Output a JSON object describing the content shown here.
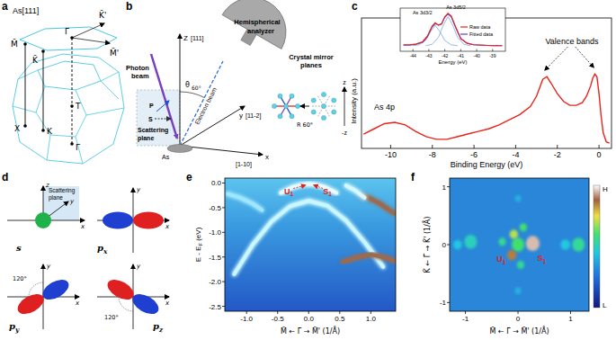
{
  "figure": {
    "a": {
      "label": "a",
      "title": "As[111]",
      "labels": {
        "M_bar": "M̄",
        "K_bar": "K̄",
        "Gamma_bar": "Γ̄",
        "K_bar_prime": "K̄'",
        "M_bar_prime": "M̄'",
        "X": "X",
        "K": "K",
        "T": "T",
        "Gamma": "Γ"
      }
    },
    "b": {
      "label": "b",
      "z_axis": "Z",
      "z_dir": "[111]",
      "theta": "θ",
      "angle": "60°",
      "analyzer": [
        "Hemispherical",
        "analyzer"
      ],
      "photon": [
        "Photon",
        "beam"
      ],
      "scattering": [
        "Scattering",
        "plane"
      ],
      "p_pol": "P",
      "s_pol": "S",
      "y_axis": "y",
      "y_dir": "[11-2]",
      "electron": "Electron beam",
      "x_axis": "x",
      "x_dir": "[1-10]",
      "atom": "As",
      "mirror": [
        "Crystal mirror",
        "planes"
      ],
      "rotation": "R 60°",
      "z_pos": "z",
      "z_neg": "-z"
    },
    "d": {
      "label": "d",
      "plane": [
        "Scattering",
        "plane"
      ],
      "axes": {
        "z": "z",
        "y": "y",
        "x": "x"
      },
      "orbitals": [
        {
          "base": "s"
        },
        {
          "base": "p",
          "sub": "x"
        },
        {
          "base": "p",
          "sub": "y",
          "angle": "120°"
        },
        {
          "base": "p",
          "sub": "z",
          "angle": "120°"
        }
      ]
    }
  },
  "chart_data": [
    {
      "type": "line",
      "label": "c",
      "xlabel": "Binding Energy (eV)",
      "ylabel": "Intensity (a.u.)",
      "xlim": [
        -11.4,
        0.6
      ],
      "xticks": [
        -10,
        -8,
        -6,
        -4,
        -2,
        0
      ],
      "ylim": [
        0,
        1
      ],
      "tick_labels": "x",
      "series": [
        {
          "color": "#e8231a",
          "x": [
            -11.3,
            -10.8,
            -10.3,
            -9.8,
            -9.3,
            -8.8,
            -8.3,
            -7.8,
            -7.3,
            -6.8,
            -6.3,
            -5.8,
            -5.3,
            -4.8,
            -4.3,
            -3.8,
            -3.3,
            -3.0,
            -2.7,
            -2.5,
            -2.3,
            -2.0,
            -1.7,
            -1.4,
            -1.1,
            -0.8,
            -0.6,
            -0.4,
            -0.3,
            -0.2,
            -0.1,
            0.0,
            0.1,
            0.2,
            0.35,
            0.5
          ],
          "values": [
            0.11,
            0.15,
            0.19,
            0.2,
            0.18,
            0.13,
            0.09,
            0.07,
            0.07,
            0.09,
            0.11,
            0.13,
            0.15,
            0.18,
            0.22,
            0.26,
            0.32,
            0.4,
            0.53,
            0.55,
            0.5,
            0.42,
            0.36,
            0.33,
            0.33,
            0.35,
            0.4,
            0.48,
            0.54,
            0.57,
            0.55,
            0.42,
            0.25,
            0.12,
            0.05,
            0.04
          ]
        }
      ],
      "annotations": [
        {
          "text": "As 4p",
          "x": -10.3,
          "y": 0.3
        },
        {
          "text": "Valence bands",
          "x": -1.3,
          "y": 0.8,
          "points_to": [
            {
              "x": -2.6,
              "y": 0.6
            },
            {
              "x": -0.25,
              "y": 0.62
            }
          ]
        }
      ],
      "inset": {
        "type": "line",
        "xlabel": "Energy (eV)",
        "xlim": [
          -44.8,
          -38.2
        ],
        "xticks": [
          -44,
          -43,
          -42,
          -41,
          -40,
          -39
        ],
        "ylim": [
          0,
          1
        ],
        "legend": "upper right",
        "series": [
          {
            "name": "Raw data",
            "color": "#e8231a",
            "x": [
              -44.6,
              -44.2,
              -43.8,
              -43.4,
              -43.1,
              -42.8,
              -42.6,
              -42.4,
              -42.2,
              -42.0,
              -41.8,
              -41.6,
              -41.3,
              -41.0,
              -40.6,
              -40.2,
              -39.6,
              -39.0,
              -38.4
            ],
            "values": [
              0.15,
              0.15,
              0.17,
              0.22,
              0.35,
              0.58,
              0.66,
              0.6,
              0.63,
              0.8,
              0.88,
              0.82,
              0.55,
              0.3,
              0.19,
              0.15,
              0.14,
              0.13,
              0.13
            ]
          },
          {
            "name": "Fitted data",
            "color": "#5a3fd0",
            "x": [
              -44.6,
              -44.2,
              -43.8,
              -43.4,
              -43.1,
              -42.8,
              -42.6,
              -42.4,
              -42.2,
              -42.0,
              -41.8,
              -41.6,
              -41.3,
              -41.0,
              -40.6,
              -40.2,
              -39.6,
              -39.0,
              -38.4
            ],
            "values": [
              0.14,
              0.14,
              0.16,
              0.21,
              0.33,
              0.56,
              0.64,
              0.61,
              0.64,
              0.79,
              0.86,
              0.8,
              0.53,
              0.29,
              0.18,
              0.15,
              0.14,
              0.13,
              0.13
            ]
          },
          {
            "color": "#7fa7d8",
            "x": [
              -44.0,
              -43.6,
              -43.2,
              -42.9,
              -42.6,
              -42.3,
              -42.0,
              -41.6,
              -41.2
            ],
            "values": [
              0.13,
              0.15,
              0.25,
              0.45,
              0.6,
              0.45,
              0.25,
              0.15,
              0.13
            ]
          },
          {
            "color": "#7fa7d8",
            "x": [
              -43.2,
              -42.8,
              -42.4,
              -42.1,
              -41.8,
              -41.5,
              -41.2,
              -40.8,
              -40.4
            ],
            "values": [
              0.13,
              0.16,
              0.32,
              0.6,
              0.8,
              0.6,
              0.32,
              0.16,
              0.13
            ]
          }
        ],
        "annotations": [
          {
            "text": "As 3d3/2",
            "x": -43.4,
            "y": 0.85
          },
          {
            "text": "As 3d5/2",
            "x": -41.3,
            "y": 0.97
          }
        ]
      }
    },
    {
      "type": "line",
      "label": "e",
      "ylabel": {
        "text": "E - E",
        "sub": "F",
        "after": " (eV)"
      },
      "xlabel": "M̄ ← Γ̄ → M̄' (1/Å)",
      "xlim": [
        -1.35,
        1.4
      ],
      "ylim": [
        -2.6,
        0.1
      ],
      "xticks": [
        {
          "value": -1,
          "label": "-1.0"
        },
        -0.5,
        {
          "value": 0,
          "label": "0.0"
        },
        0.5,
        {
          "value": 1,
          "label": "1.0"
        }
      ],
      "yticks": [
        {
          "value": 0,
          "label": "0.0"
        },
        -0.5,
        {
          "value": -1,
          "label": "-1.0"
        },
        -1.5,
        {
          "value": -2,
          "label": "-2.0"
        },
        -2.5
      ],
      "series": [
        {
          "color": "#c9f6ff",
          "x": [
            -1.2,
            -0.9,
            -0.6,
            -0.3,
            0,
            0.3,
            0.6,
            0.9,
            1.2
          ],
          "values": [
            -1.85,
            -1.25,
            -0.78,
            -0.47,
            -0.36,
            -0.46,
            -0.76,
            -1.2,
            -1.7
          ]
        },
        {
          "color": "#e8fbff",
          "x": [
            -0.45,
            -0.25,
            -0.1,
            0,
            0.1,
            0.25,
            0.45
          ],
          "values": [
            -0.2,
            -0.08,
            -0.03,
            -0.02,
            -0.03,
            -0.08,
            -0.2
          ]
        },
        {
          "color": "#9fe6ff",
          "x": [
            -1.3,
            -1.1,
            -0.9,
            -0.75
          ],
          "values": [
            -0.22,
            -0.3,
            -0.42,
            -0.55
          ]
        },
        {
          "color": "#9b6b4f",
          "x": [
            0.85,
            1.0,
            1.15,
            1.3,
            1.38
          ],
          "values": [
            -0.25,
            -0.32,
            -0.42,
            -0.55,
            -0.62
          ]
        },
        {
          "color": "#9b6b4f",
          "x": [
            0.55,
            0.8,
            1.0,
            1.2,
            1.38
          ],
          "values": [
            -1.6,
            -1.5,
            -1.45,
            -1.5,
            -1.58
          ]
        },
        {
          "color": "#d8f8ff",
          "x": [
            0.6,
            0.75,
            0.9
          ],
          "values": [
            -0.05,
            -0.15,
            -0.3
          ]
        }
      ],
      "annotations": [
        {
          "text": "U",
          "sub": "1",
          "x": -0.32,
          "y": -0.22,
          "points_to": {
            "x": -0.05,
            "y": -0.04
          }
        },
        {
          "text": "S",
          "sub": "1",
          "x": 0.3,
          "y": -0.22,
          "points_to": {
            "x": 0.08,
            "y": -0.04
          }
        }
      ]
    },
    {
      "type": "scatter",
      "label": "f",
      "xlabel": "M̄ ← Γ̄ → M̄' (1/Å)",
      "ylabel": "K̄ ← Γ̄ → K̄' (1/Å)",
      "xlim": [
        -1.3,
        1.35
      ],
      "ylim": [
        -1.15,
        1.15
      ],
      "xticks": [
        -1,
        0,
        1
      ],
      "yticks": [
        -1,
        0,
        1
      ],
      "series": [
        {
          "x": [
            0,
            0.28,
            -0.12,
            -0.08,
            0.1,
            -0.3,
            0.05,
            -0.9,
            -1.15,
            0.9,
            1.15,
            0,
            0
          ],
          "values": [
            0,
            0.02,
            -0.18,
            0.18,
            0.3,
            0.05,
            -0.35,
            0.05,
            0,
            0,
            0,
            0.8,
            -0.8
          ],
          "size": [
            0.12,
            0.13,
            0.09,
            0.08,
            0.07,
            0.07,
            0.07,
            0.12,
            0.08,
            0.09,
            0.12,
            0.06,
            0.06
          ],
          "intensity": [
            0.6,
            0.95,
            0.85,
            0.7,
            0.6,
            0.55,
            0.55,
            0.5,
            0.45,
            0.45,
            0.55,
            0.4,
            0.4
          ]
        }
      ],
      "colorbar": {
        "range": [
          0,
          1
        ],
        "high": "H",
        "low": "L"
      },
      "annotations": [
        {
          "text": "U",
          "sub": "1",
          "x": -0.32,
          "y": -0.3
        },
        {
          "text": "S",
          "sub": "1",
          "x": 0.45,
          "y": -0.28
        }
      ]
    }
  ]
}
